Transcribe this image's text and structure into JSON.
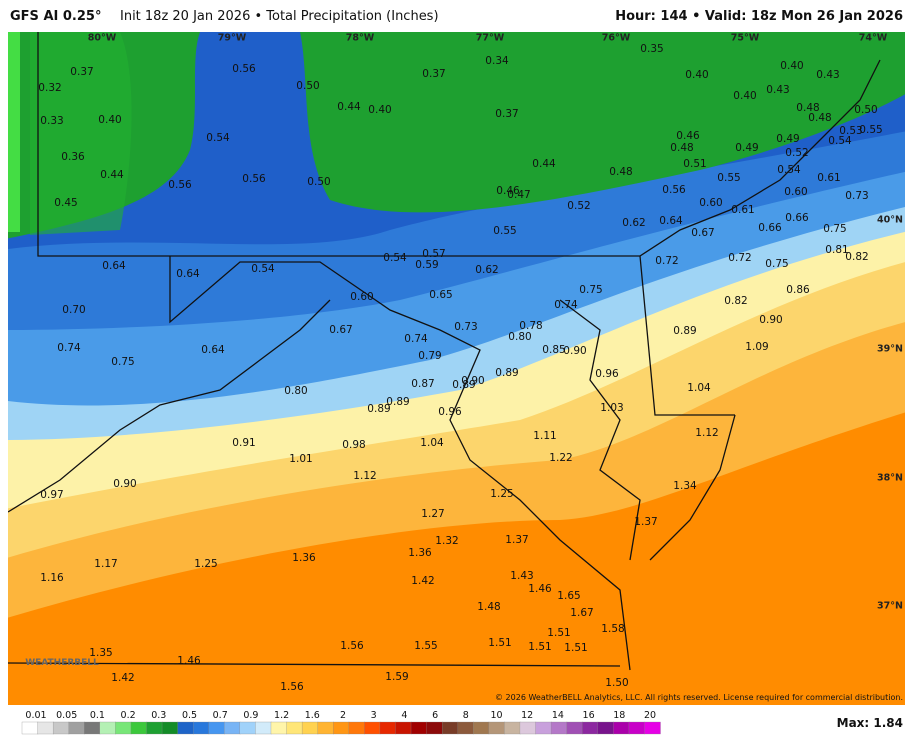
{
  "header": {
    "model": "GFS AI 0.25°",
    "description": "Init 18z 20 Jan 2026 • Total Precipitation (Inches)",
    "valid": "Hour: 144 • Valid: 18z Mon 26 Jan 2026"
  },
  "longitudes": [
    "80°W",
    "79°W",
    "78°W",
    "77°W",
    "76°W",
    "75°W",
    "74°W"
  ],
  "latitudes": [
    "40°N",
    "39°N",
    "38°N",
    "37°N"
  ],
  "map_labels": [
    "0.32",
    "0.37",
    "0.33",
    "0.40",
    "0.36",
    "0.44",
    "0.45",
    "0.56",
    "0.50",
    "0.54",
    "0.56",
    "0.56",
    "0.50",
    "0.44",
    "0.40",
    "0.37",
    "0.34",
    "0.37",
    "0.35",
    "0.40",
    "0.40",
    "0.43",
    "0.40",
    "0.43",
    "0.48",
    "0.48",
    "0.50",
    "0.53",
    "0.55",
    "0.54",
    "0.46",
    "0.48",
    "0.49",
    "0.49",
    "0.52",
    "0.51",
    "0.44",
    "0.48",
    "0.54",
    "0.55",
    "0.61",
    "0.56",
    "0.60",
    "0.46",
    "0.47",
    "0.52",
    "0.60",
    "0.61",
    "0.73",
    "0.66",
    "0.62",
    "0.64",
    "0.67",
    "0.66",
    "0.75",
    "0.55",
    "0.81",
    "0.82",
    "0.64",
    "0.64",
    "0.54",
    "0.54",
    "0.57",
    "0.59",
    "0.62",
    "0.72",
    "0.72",
    "0.75",
    "0.60",
    "0.65",
    "0.86",
    "0.82",
    "0.70",
    "0.67",
    "0.73",
    "0.78",
    "0.74",
    "0.75",
    "0.80",
    "0.89",
    "0.90",
    "0.74",
    "0.64",
    "0.75",
    "0.74",
    "0.79",
    "0.85",
    "0.90",
    "1.09",
    "0.87",
    "0.89",
    "0.90",
    "0.89",
    "0.96",
    "1.04",
    "0.80",
    "0.89",
    "0.89",
    "0.96",
    "1.03",
    "1.12",
    "1.11",
    "0.91",
    "0.98",
    "1.04",
    "1.22",
    "1.01",
    "1.12",
    "0.97",
    "0.90",
    "1.34",
    "1.25",
    "1.27",
    "1.37",
    "1.32",
    "1.37",
    "1.36",
    "1.36",
    "1.16",
    "1.17",
    "1.25",
    "1.42",
    "1.43",
    "1.46",
    "1.65",
    "1.48",
    "1.67",
    "1.58",
    "1.51",
    "1.56",
    "1.55",
    "1.51",
    "1.51",
    "1.51",
    "1.35",
    "1.46",
    "1.59",
    "1.50",
    "1.42",
    "1.56"
  ],
  "legend": {
    "labels": [
      "0.01",
      "0.05",
      "0.1",
      "0.2",
      "0.3",
      "0.5",
      "0.7",
      "0.9",
      "1.2",
      "1.6",
      "2",
      "3",
      "4",
      "6",
      "8",
      "10",
      "12",
      "14",
      "16",
      "18",
      "20"
    ],
    "max": "Max: 1.84"
  },
  "credit": "© 2026 WeatherBELL Analytics, LLC. All rights reserved. License required for commercial distribution.",
  "logo": "WEATHERBELL"
}
